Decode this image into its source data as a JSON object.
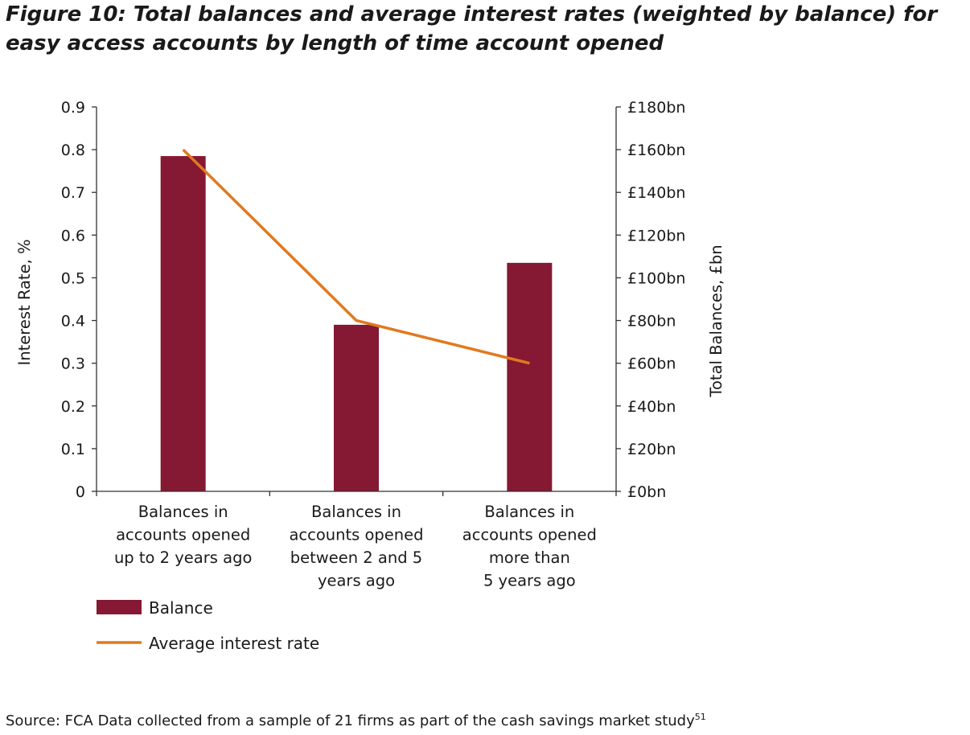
{
  "figure": {
    "title": "Figure 10: Total balances and average interest rates (weighted by balance) for easy access accounts by length of time account opened",
    "source_text": "Source: FCA Data collected from a sample of 21 firms as part of the cash savings market study",
    "source_footnote": "51"
  },
  "chart_data": {
    "type": "bar",
    "categories": [
      [
        "Balances in",
        "accounts opened",
        "up to 2 years ago"
      ],
      [
        "Balances in",
        "accounts opened",
        "between 2 and 5",
        "years ago"
      ],
      [
        "Balances in",
        "accounts opened",
        "more than",
        "5 years ago"
      ]
    ],
    "series": [
      {
        "name": "Balance",
        "type": "bar",
        "axis": "right",
        "color": "#851833",
        "values": [
          157,
          78,
          107
        ]
      },
      {
        "name": "Average interest rate",
        "type": "line",
        "axis": "left",
        "color": "#E07A1F",
        "values": [
          0.8,
          0.4,
          0.3
        ]
      }
    ],
    "left_axis": {
      "label": "Interest Rate, %",
      "range": [
        0,
        0.9
      ],
      "ticks": [
        "0",
        "0.1",
        "0.2",
        "0.3",
        "0.4",
        "0.5",
        "0.6",
        "0.7",
        "0.8",
        "0.9"
      ]
    },
    "right_axis": {
      "label": "Total Balances, £bn",
      "range": [
        0,
        180
      ],
      "ticks": [
        "£0bn",
        "£20bn",
        "£40bn",
        "£60bn",
        "£80bn",
        "£100bn",
        "£120bn",
        "£140bn",
        "£160bn",
        "£180bn"
      ]
    },
    "legend_position": "bottom-left",
    "grid": false
  }
}
